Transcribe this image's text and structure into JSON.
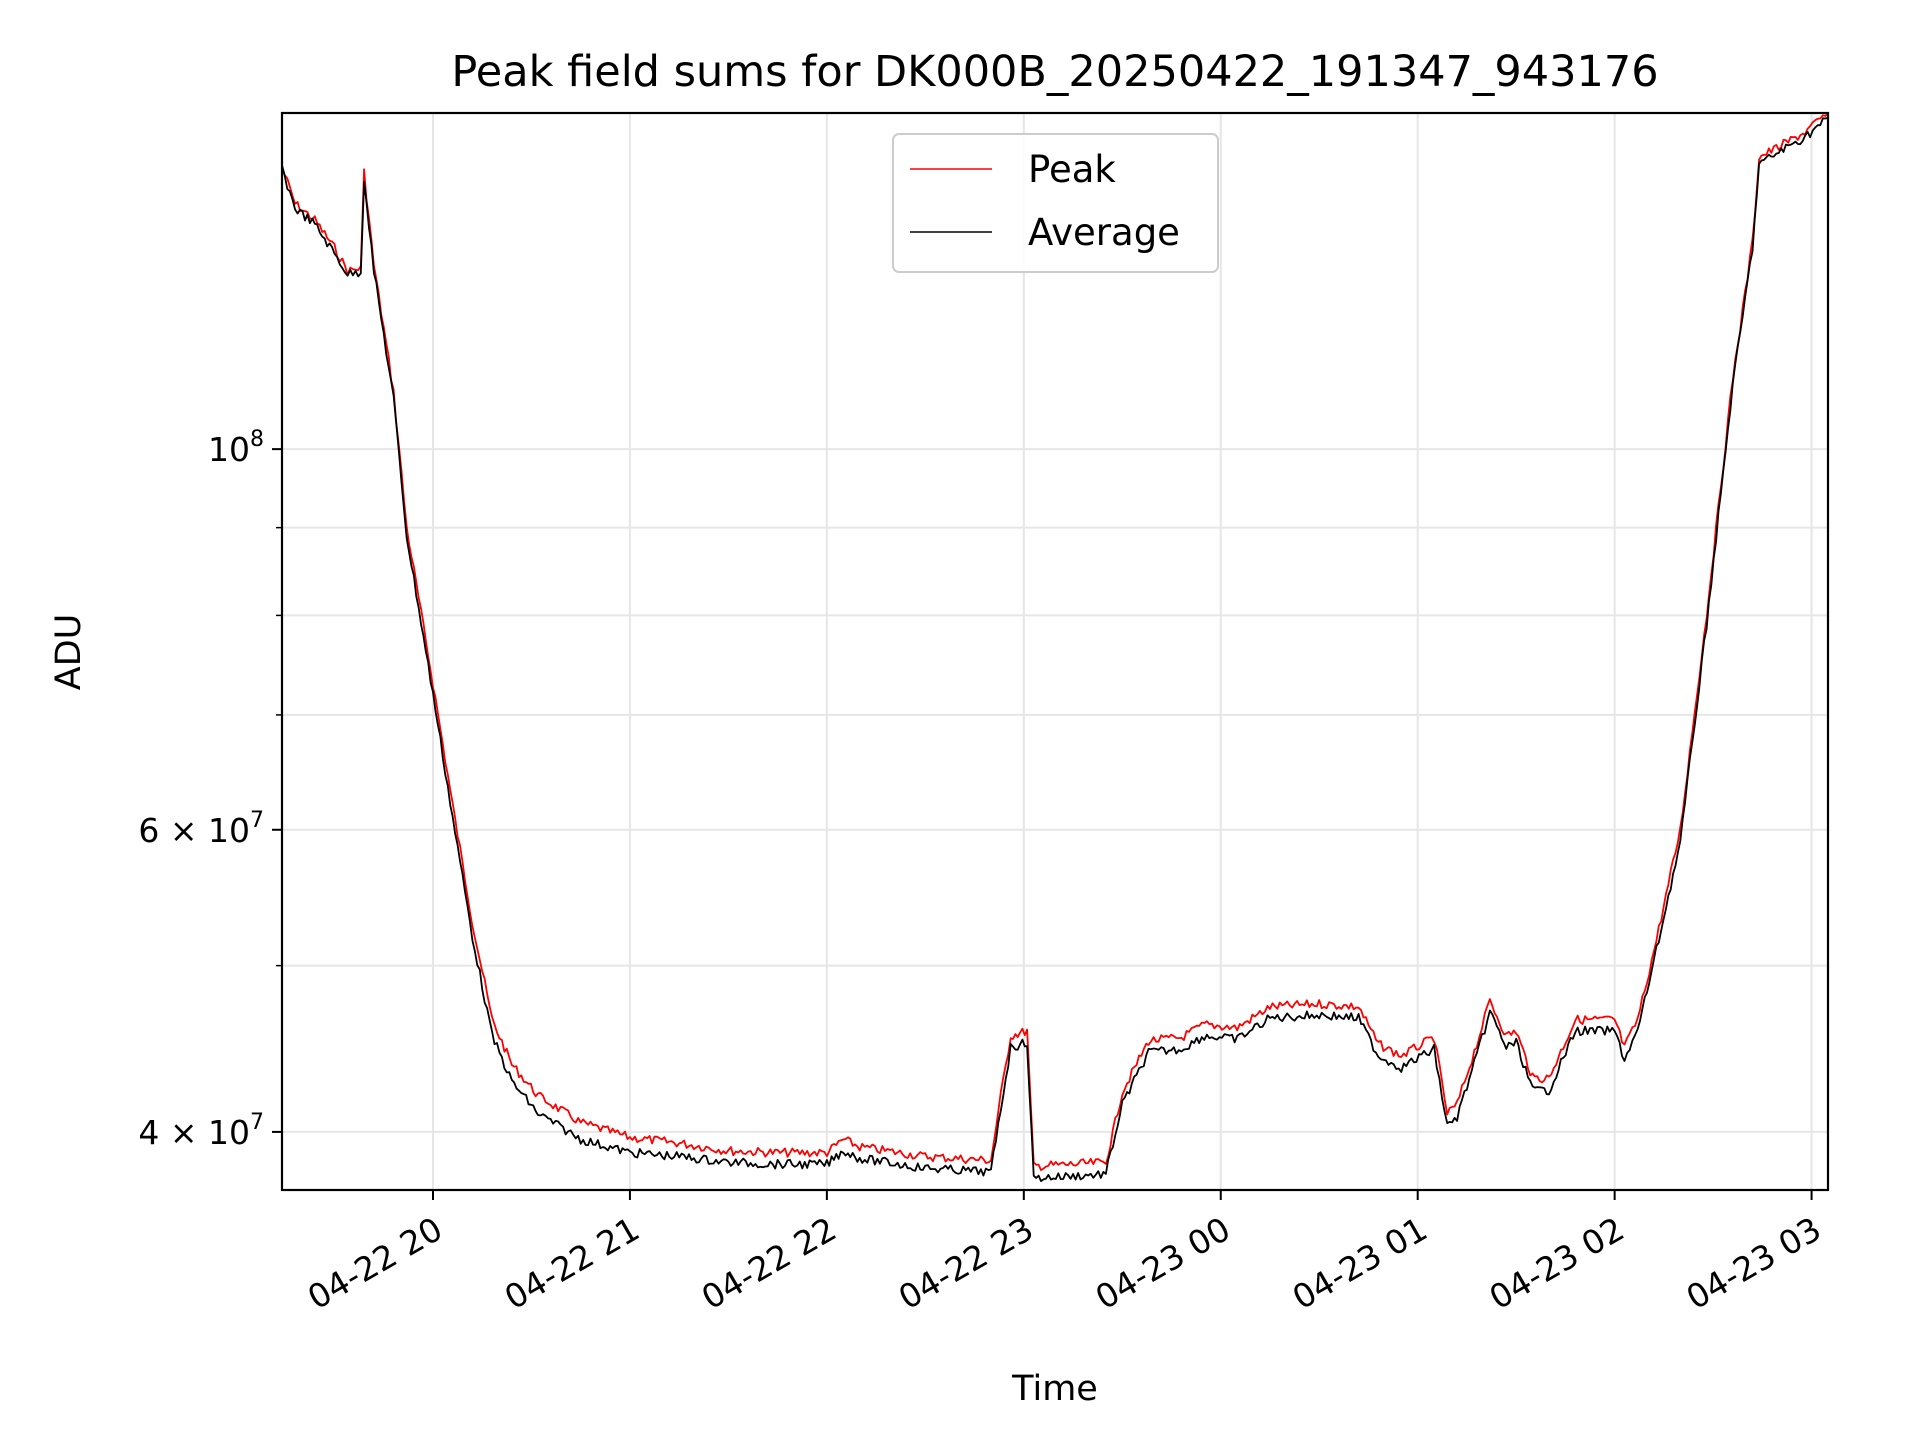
{
  "chart_data": {
    "type": "line",
    "title": "Peak field sums for DK000B_20250422_191347_943176",
    "xlabel": "Time",
    "ylabel": "ADU",
    "yscale": "log",
    "ylim": [
      37000000,
      157000000
    ],
    "xlim": [
      "2025-04-22 19:14",
      "2025-04-23 03:05"
    ],
    "grid": true,
    "legend_position": "top-center",
    "x_ticks": [
      {
        "value": "2025-04-22 20:00",
        "label": "04-22 20"
      },
      {
        "value": "2025-04-22 21:00",
        "label": "04-22 21"
      },
      {
        "value": "2025-04-22 22:00",
        "label": "04-22 22"
      },
      {
        "value": "2025-04-22 23:00",
        "label": "04-22 23"
      },
      {
        "value": "2025-04-23 00:00",
        "label": "04-23 00"
      },
      {
        "value": "2025-04-23 01:00",
        "label": "04-23 01"
      },
      {
        "value": "2025-04-23 02:00",
        "label": "04-23 02"
      },
      {
        "value": "2025-04-23 03:00",
        "label": "04-23 03"
      }
    ],
    "y_ticks": [
      {
        "value": 40000000,
        "label": "4 × 10",
        "exp": "7"
      },
      {
        "value": 60000000,
        "label": "6 × 10",
        "exp": "7"
      },
      {
        "value": 100000000,
        "label": "10",
        "exp": "8"
      }
    ],
    "series": [
      {
        "name": "Peak",
        "color": "#ff0000",
        "points": [
          [
            "2025-04-22 19:14",
            146000000
          ],
          [
            "2025-04-22 19:18",
            139000000
          ],
          [
            "2025-04-22 19:24",
            136000000
          ],
          [
            "2025-04-22 19:30",
            131000000
          ],
          [
            "2025-04-22 19:34",
            127000000
          ],
          [
            "2025-04-22 19:38",
            127500000
          ],
          [
            "2025-04-22 19:39",
            145000000
          ],
          [
            "2025-04-22 19:42",
            128000000
          ],
          [
            "2025-04-22 19:48",
            108000000
          ],
          [
            "2025-04-22 19:52",
            90000000
          ],
          [
            "2025-04-22 20:00",
            73000000
          ],
          [
            "2025-04-22 20:06",
            62000000
          ],
          [
            "2025-04-22 20:12",
            53000000
          ],
          [
            "2025-04-22 20:18",
            46500000
          ],
          [
            "2025-04-22 20:24",
            43800000
          ],
          [
            "2025-04-22 20:32",
            42000000
          ],
          [
            "2025-04-22 20:45",
            40500000
          ],
          [
            "2025-04-22 21:00",
            39700000
          ],
          [
            "2025-04-22 21:15",
            39400000
          ],
          [
            "2025-04-22 21:30",
            39000000
          ],
          [
            "2025-04-22 21:45",
            38900000
          ],
          [
            "2025-04-22 22:00",
            38900000
          ],
          [
            "2025-04-22 22:05",
            39600000
          ],
          [
            "2025-04-22 22:10",
            39200000
          ],
          [
            "2025-04-22 22:30",
            38700000
          ],
          [
            "2025-04-22 22:50",
            38500000
          ],
          [
            "2025-04-22 22:53",
            42000000
          ],
          [
            "2025-04-22 22:56",
            45500000
          ],
          [
            "2025-04-22 23:01",
            45800000
          ],
          [
            "2025-04-22 23:03",
            38200000
          ],
          [
            "2025-04-22 23:15",
            38300000
          ],
          [
            "2025-04-22 23:25",
            38400000
          ],
          [
            "2025-04-22 23:30",
            42200000
          ],
          [
            "2025-04-22 23:38",
            45200000
          ],
          [
            "2025-04-22 23:48",
            45400000
          ],
          [
            "2025-04-22 23:55",
            46200000
          ],
          [
            "2025-04-23 00:05",
            46000000
          ],
          [
            "2025-04-23 00:15",
            47300000
          ],
          [
            "2025-04-23 00:30",
            47500000
          ],
          [
            "2025-04-23 00:42",
            47300000
          ],
          [
            "2025-04-23 00:48",
            45000000
          ],
          [
            "2025-04-23 00:55",
            44300000
          ],
          [
            "2025-04-23 01:05",
            45400000
          ],
          [
            "2025-04-23 01:09",
            41000000
          ],
          [
            "2025-04-23 01:12",
            41500000
          ],
          [
            "2025-04-23 01:18",
            45000000
          ],
          [
            "2025-04-23 01:22",
            47700000
          ],
          [
            "2025-04-23 01:27",
            45500000
          ],
          [
            "2025-04-23 01:30",
            45800000
          ],
          [
            "2025-04-23 01:35",
            43000000
          ],
          [
            "2025-04-23 01:40",
            43000000
          ],
          [
            "2025-04-23 01:48",
            46500000
          ],
          [
            "2025-04-23 02:00",
            46500000
          ],
          [
            "2025-04-23 02:03",
            44800000
          ],
          [
            "2025-04-23 02:07",
            46500000
          ],
          [
            "2025-04-23 02:12",
            51000000
          ],
          [
            "2025-04-23 02:20",
            60000000
          ],
          [
            "2025-04-23 02:28",
            80000000
          ],
          [
            "2025-04-23 02:36",
            110000000
          ],
          [
            "2025-04-23 02:42",
            132000000
          ],
          [
            "2025-04-23 02:44",
            148000000
          ],
          [
            "2025-04-23 02:50",
            150000000
          ],
          [
            "2025-04-23 02:58",
            153000000
          ],
          [
            "2025-04-23 03:05",
            157000000
          ]
        ]
      },
      {
        "name": "Average",
        "color": "#000000",
        "points": [
          [
            "2025-04-22 19:14",
            145500000
          ],
          [
            "2025-04-22 19:18",
            138200000
          ],
          [
            "2025-04-22 19:24",
            135200000
          ],
          [
            "2025-04-22 19:30",
            130000000
          ],
          [
            "2025-04-22 19:34",
            126500000
          ],
          [
            "2025-04-22 19:38",
            126800000
          ],
          [
            "2025-04-22 19:39",
            144000000
          ],
          [
            "2025-04-22 19:42",
            127000000
          ],
          [
            "2025-04-22 19:48",
            107000000
          ],
          [
            "2025-04-22 19:52",
            89000000
          ],
          [
            "2025-04-22 20:00",
            72000000
          ],
          [
            "2025-04-22 20:06",
            61000000
          ],
          [
            "2025-04-22 20:12",
            52000000
          ],
          [
            "2025-04-22 20:18",
            45500000
          ],
          [
            "2025-04-22 20:24",
            42800000
          ],
          [
            "2025-04-22 20:32",
            41000000
          ],
          [
            "2025-04-22 20:45",
            39600000
          ],
          [
            "2025-04-22 21:00",
            38900000
          ],
          [
            "2025-04-22 21:15",
            38700000
          ],
          [
            "2025-04-22 21:30",
            38400000
          ],
          [
            "2025-04-22 21:45",
            38300000
          ],
          [
            "2025-04-22 22:00",
            38300000
          ],
          [
            "2025-04-22 22:05",
            39000000
          ],
          [
            "2025-04-22 22:10",
            38600000
          ],
          [
            "2025-04-22 22:30",
            38100000
          ],
          [
            "2025-04-22 22:50",
            37900000
          ],
          [
            "2025-04-22 22:53",
            41300000
          ],
          [
            "2025-04-22 22:56",
            44800000
          ],
          [
            "2025-04-22 23:01",
            45100000
          ],
          [
            "2025-04-22 23:03",
            37600000
          ],
          [
            "2025-04-22 23:15",
            37700000
          ],
          [
            "2025-04-22 23:25",
            37800000
          ],
          [
            "2025-04-22 23:30",
            41500000
          ],
          [
            "2025-04-22 23:38",
            44500000
          ],
          [
            "2025-04-22 23:48",
            44700000
          ],
          [
            "2025-04-22 23:55",
            45500000
          ],
          [
            "2025-04-23 00:05",
            45300000
          ],
          [
            "2025-04-23 00:15",
            46600000
          ],
          [
            "2025-04-23 00:30",
            46800000
          ],
          [
            "2025-04-23 00:42",
            46600000
          ],
          [
            "2025-04-23 00:48",
            44300000
          ],
          [
            "2025-04-23 00:55",
            43600000
          ],
          [
            "2025-04-23 01:05",
            44700000
          ],
          [
            "2025-04-23 01:09",
            40300000
          ],
          [
            "2025-04-23 01:12",
            40800000
          ],
          [
            "2025-04-23 01:18",
            44300000
          ],
          [
            "2025-04-23 01:22",
            47000000
          ],
          [
            "2025-04-23 01:27",
            44800000
          ],
          [
            "2025-04-23 01:30",
            45100000
          ],
          [
            "2025-04-23 01:35",
            42300000
          ],
          [
            "2025-04-23 01:40",
            42300000
          ],
          [
            "2025-04-23 01:48",
            45800000
          ],
          [
            "2025-04-23 02:00",
            45800000
          ],
          [
            "2025-04-23 02:03",
            44100000
          ],
          [
            "2025-04-23 02:07",
            45800000
          ],
          [
            "2025-04-23 02:12",
            50300000
          ],
          [
            "2025-04-23 02:20",
            59000000
          ],
          [
            "2025-04-23 02:28",
            79000000
          ],
          [
            "2025-04-23 02:36",
            109000000
          ],
          [
            "2025-04-23 02:42",
            131000000
          ],
          [
            "2025-04-23 02:44",
            146500000
          ],
          [
            "2025-04-23 02:50",
            149000000
          ],
          [
            "2025-04-23 02:58",
            152000000
          ],
          [
            "2025-04-23 03:05",
            156000000
          ]
        ]
      }
    ]
  }
}
